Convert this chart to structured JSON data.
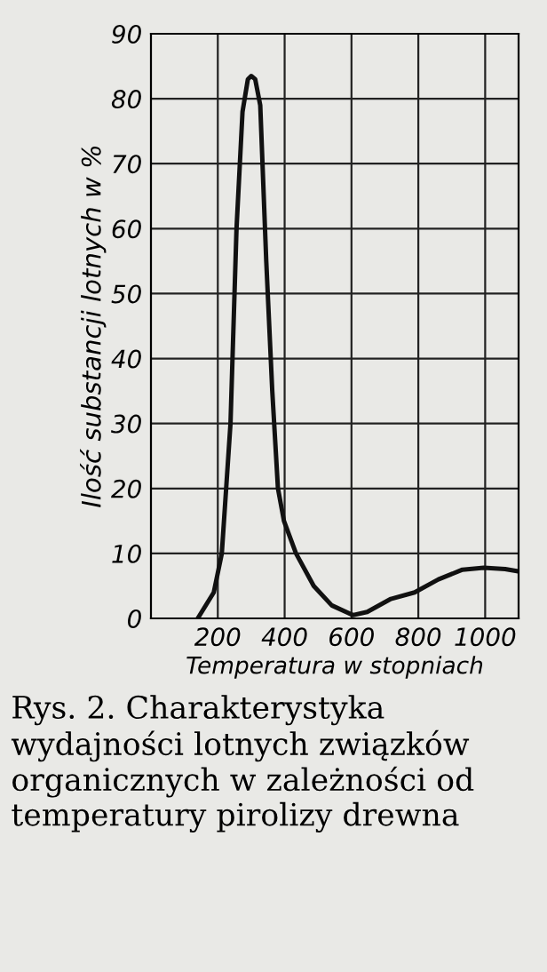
{
  "chart_data": {
    "type": "line",
    "xlabel": "Temperatura w stopniach",
    "ylabel": "Ilość substancji lotnych w %",
    "x": [
      140,
      188,
      212,
      238,
      256,
      274,
      290,
      300,
      312,
      327,
      345,
      363,
      380,
      398,
      434,
      487,
      541,
      604,
      647,
      718,
      789,
      860,
      932,
      996,
      1060,
      1092
    ],
    "series": [
      {
        "color": "#111111",
        "values": [
          0,
          4,
          10,
          30,
          60,
          78,
          83,
          83.5,
          83,
          79,
          55,
          35,
          20,
          15,
          10,
          5,
          2,
          0.5,
          1,
          3,
          4,
          6,
          7.5,
          7.8,
          7.6,
          7.3
        ]
      }
    ],
    "xlim": [
      0,
      1100
    ],
    "xticks": [
      200,
      400,
      600,
      800,
      1000
    ],
    "ylim": [
      0,
      90
    ],
    "yticks": [
      0,
      10,
      20,
      30,
      40,
      50,
      60,
      70,
      80,
      90
    ],
    "grid": true,
    "legend": false,
    "marker": "none",
    "line_style": "solid",
    "annotations": [
      "Rys. 2. Charakterystyka wydajności lotnych związków organicznych w zależności od temperatury pirolizy drewna"
    ]
  }
}
